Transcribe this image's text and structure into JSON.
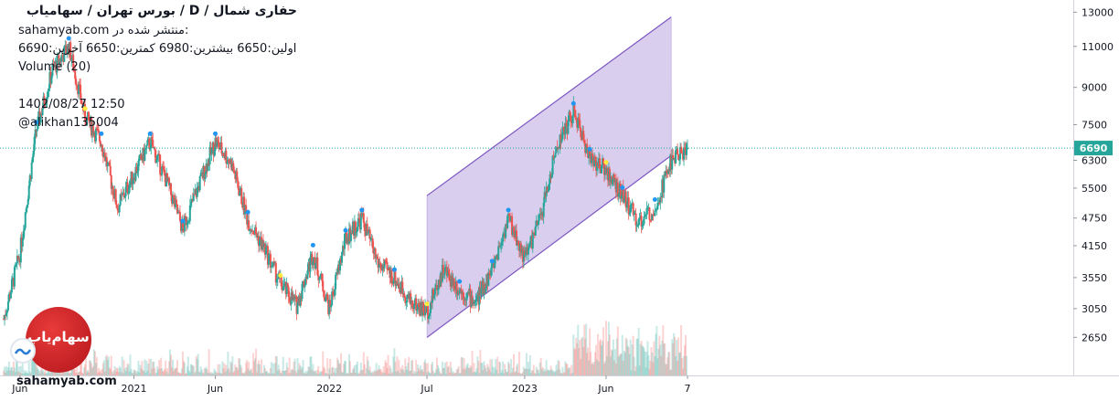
{
  "header": {
    "title": "حفاری شمال / D / بورس تهران / سهامیاب",
    "published": "sahamyab.com منتشر شده در:",
    "ohlc": "اولین:6650 بیشترین:6980 کمترین:6650 آخرین:6690",
    "volume": "Volume (20)",
    "datetime": "1402/08/27 12:50",
    "user": "@alikhan135004"
  },
  "logo": {
    "text": "سهام‌یاب",
    "watermark": "sahamyab.com"
  },
  "colors": {
    "up": "#26a69a",
    "down": "#ef5350",
    "channel_fill": "#b39ddb",
    "channel_line": "#7e57c2",
    "price_tag": "#26a69a",
    "price_line": "#26a69a",
    "marker_blue": "#2196f3",
    "marker_yellow": "#ffeb3b"
  },
  "chart_data": {
    "type": "candlestick",
    "y_scale": "log",
    "ylim": [
      2200,
      13800
    ],
    "y_ticks": [
      13000,
      11000,
      9000,
      7500,
      6300,
      5500,
      4750,
      4150,
      3550,
      3050,
      2650
    ],
    "x_labels": [
      "Jun",
      "2021",
      "Jun",
      "2022",
      "Jul",
      "2023",
      "Jun",
      "7"
    ],
    "last_price": 6690,
    "grid": false,
    "legend": "none",
    "overlays": {
      "ascending_channel": {
        "upper": [
          {
            "x": "2022 Jul",
            "y": 5300
          },
          {
            "x": "2023 Oct",
            "y": 12700
          }
        ],
        "lower": [
          {
            "x": "2022 Jul",
            "y": 2650
          },
          {
            "x": "2023 Oct",
            "y": 6450
          }
        ]
      },
      "volume_series": "Volume (20)"
    },
    "series": [
      {
        "x": [
          "2020 May",
          "2020 Jun",
          "2020 Jul",
          "2020 Aug",
          "2020 Sep",
          "2020 Oct",
          "2020 Nov",
          "2020 Dec",
          "2021 Jan",
          "2021 Feb",
          "2021 Mar",
          "2021 Apr",
          "2021 May",
          "2021 Jun",
          "2021 Jul",
          "2021 Aug",
          "2021 Sep",
          "2021 Oct",
          "2021 Nov",
          "2021 Dec",
          "2022 Jan",
          "2022 Feb",
          "2022 Mar",
          "2022 Apr",
          "2022 May",
          "2022 Jun",
          "2022 Jul",
          "2022 Aug",
          "2022 Sep",
          "2022 Oct",
          "2022 Nov",
          "2022 Dec",
          "2023 Jan",
          "2023 Feb",
          "2023 Mar",
          "2023 Apr",
          "2023 May",
          "2023 Jun",
          "2023 Jul",
          "2023 Aug",
          "2023 Sep",
          "2023 Oct",
          "2023 Nov"
        ],
        "values": [
          2900,
          4000,
          7300,
          9800,
          11000,
          7800,
          6900,
          5000,
          5900,
          6900,
          5700,
          4500,
          5600,
          6900,
          6200,
          4700,
          4100,
          3450,
          3100,
          4000,
          3050,
          4300,
          4750,
          3800,
          3550,
          3150,
          3000,
          3700,
          3350,
          3150,
          3700,
          4750,
          3900,
          4800,
          6800,
          8000,
          6400,
          6000,
          5300,
          4650,
          5000,
          6300,
          6690
        ]
      }
    ]
  }
}
